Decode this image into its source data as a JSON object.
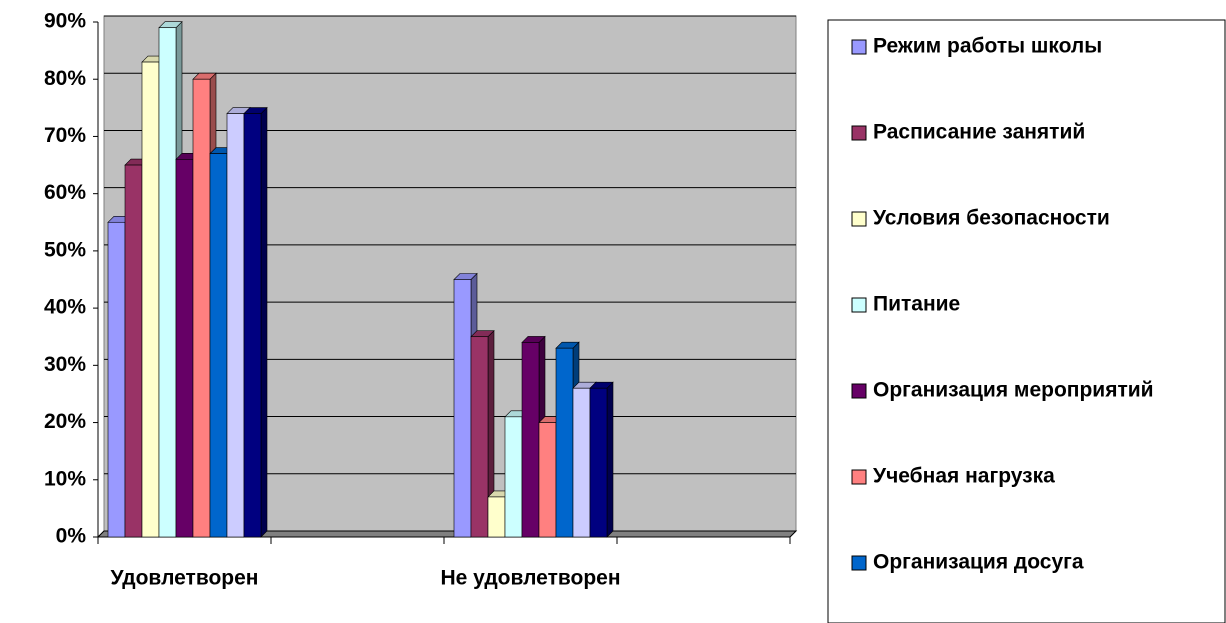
{
  "chart_data": {
    "type": "bar3d",
    "categories": [
      "Удовлетворен",
      null,
      "Не удовлетворен",
      null
    ],
    "series": [
      {
        "name": "Режим работы школы",
        "color": "#9999ff",
        "values": [
          55,
          null,
          45,
          null
        ]
      },
      {
        "name": "Расписание занятий",
        "color": "#993366",
        "values": [
          65,
          null,
          35,
          null
        ]
      },
      {
        "name": "Условия безопасности",
        "color": "#ffffcc",
        "values": [
          83,
          null,
          7,
          null
        ]
      },
      {
        "name": "Питание",
        "color": "#ccffff",
        "values": [
          89,
          null,
          21,
          null
        ]
      },
      {
        "name": "Организация мероприятий",
        "color": "#660066",
        "values": [
          66,
          null,
          34,
          null
        ]
      },
      {
        "name": "Учебная нагрузка",
        "color": "#ff8080",
        "values": [
          80,
          null,
          20,
          null
        ]
      },
      {
        "name": "Организация досуга",
        "color": "#0066cc",
        "values": [
          67,
          null,
          33,
          null
        ]
      },
      {
        "name": null,
        "color": "#ccccff",
        "values": [
          74,
          null,
          26,
          null
        ]
      },
      {
        "name": null,
        "color": "#000080",
        "values": [
          74,
          null,
          26,
          null
        ]
      }
    ],
    "ylim": [
      0,
      90
    ],
    "yticks": [
      {
        "value": 0,
        "label": "0%"
      },
      {
        "value": 10,
        "label": "10%"
      },
      {
        "value": 20,
        "label": "20%"
      },
      {
        "value": 30,
        "label": "30%"
      },
      {
        "value": 40,
        "label": "40%"
      },
      {
        "value": 50,
        "label": "50%"
      },
      {
        "value": 60,
        "label": "60%"
      },
      {
        "value": 70,
        "label": "70%"
      },
      {
        "value": 80,
        "label": "80%"
      },
      {
        "value": 90,
        "label": "90%"
      }
    ],
    "grid": true,
    "legend": "right"
  }
}
